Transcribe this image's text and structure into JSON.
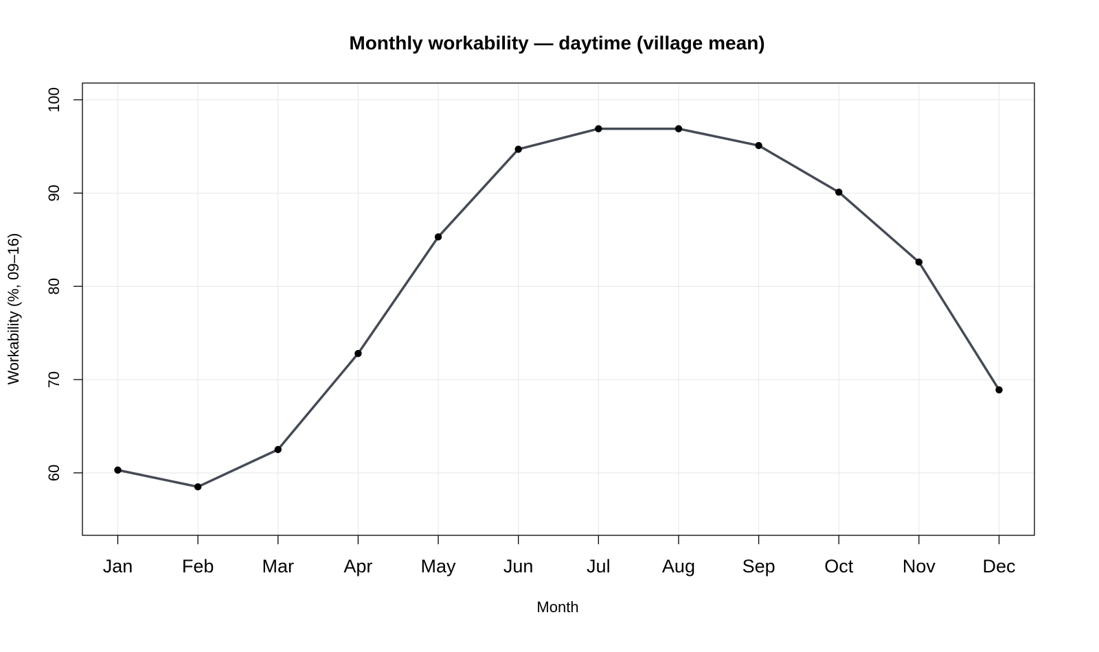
{
  "chart_data": {
    "type": "line",
    "title": "Monthly workability — daytime (village mean)",
    "xlabel": "Month",
    "ylabel": "Workability (%, 09–16)",
    "categories": [
      "Jan",
      "Feb",
      "Mar",
      "Apr",
      "May",
      "Jun",
      "Jul",
      "Aug",
      "Sep",
      "Oct",
      "Nov",
      "Dec"
    ],
    "series": [
      {
        "values": [
          60.3,
          58.5,
          62.5,
          72.8,
          85.3,
          94.7,
          96.9,
          96.9,
          95.1,
          90.1,
          82.6,
          68.9
        ],
        "color": "#454b55"
      }
    ],
    "yticks": [
      60,
      70,
      80,
      90,
      100
    ],
    "ylim": [
      53.3,
      101.8
    ],
    "grid": true,
    "legend": "none"
  }
}
